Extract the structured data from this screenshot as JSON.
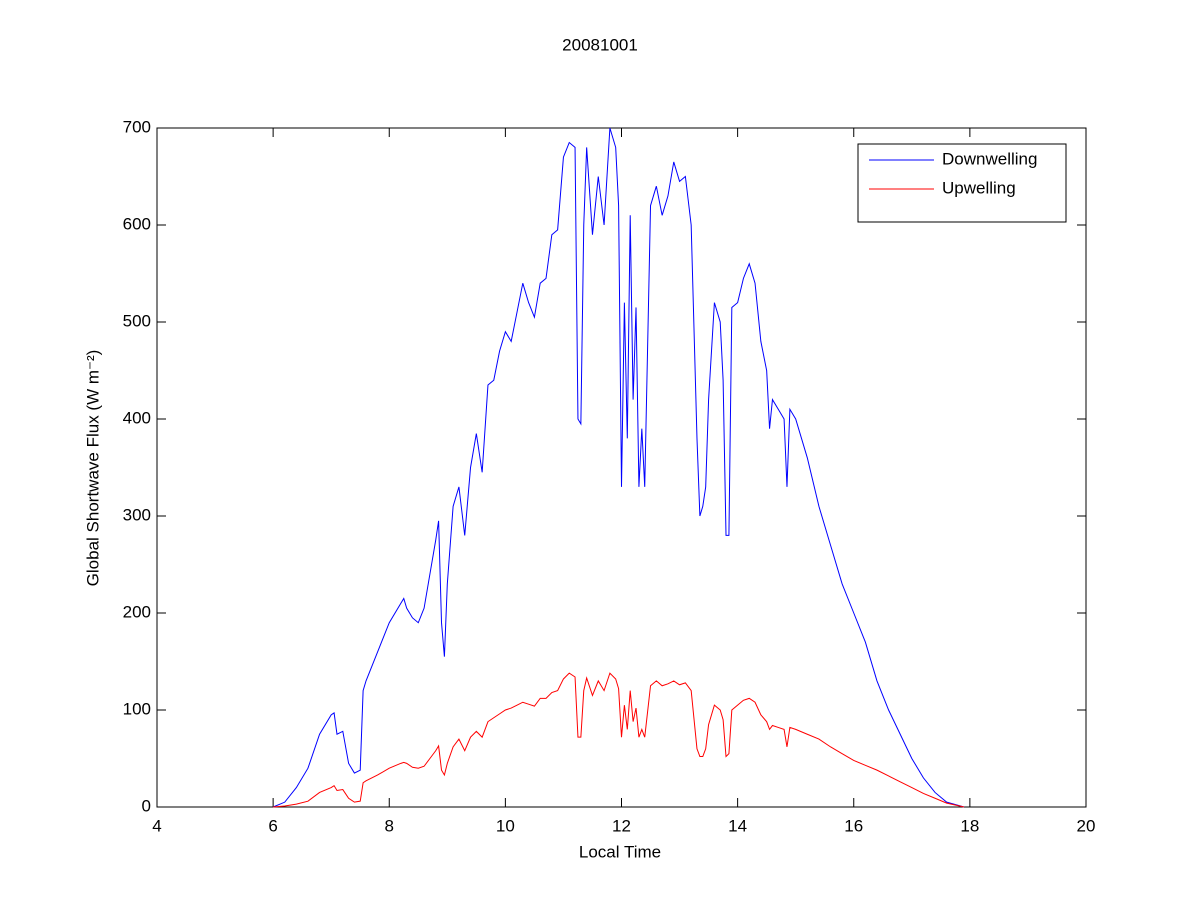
{
  "chart_data": {
    "type": "line",
    "title": "20081001",
    "xlabel": "Local Time",
    "ylabel": "Global Shortwave Flux (W m⁻²)",
    "xlim": [
      4,
      20
    ],
    "ylim": [
      0,
      700
    ],
    "xticks": [
      4,
      6,
      8,
      10,
      12,
      14,
      16,
      18,
      20
    ],
    "yticks": [
      0,
      100,
      200,
      300,
      400,
      500,
      600,
      700
    ],
    "legend": "upper right",
    "grid": false,
    "x": [
      6.0,
      6.2,
      6.4,
      6.6,
      6.8,
      7.0,
      7.05,
      7.1,
      7.2,
      7.3,
      7.4,
      7.5,
      7.55,
      7.6,
      7.8,
      8.0,
      8.2,
      8.25,
      8.3,
      8.4,
      8.5,
      8.6,
      8.7,
      8.8,
      8.85,
      8.9,
      8.95,
      9.0,
      9.1,
      9.2,
      9.3,
      9.4,
      9.5,
      9.6,
      9.7,
      9.8,
      9.9,
      10.0,
      10.1,
      10.2,
      10.3,
      10.4,
      10.5,
      10.6,
      10.7,
      10.8,
      10.9,
      11.0,
      11.1,
      11.2,
      11.25,
      11.3,
      11.35,
      11.4,
      11.5,
      11.6,
      11.7,
      11.8,
      11.9,
      11.95,
      12.0,
      12.05,
      12.1,
      12.15,
      12.2,
      12.25,
      12.3,
      12.35,
      12.4,
      12.5,
      12.6,
      12.7,
      12.8,
      12.9,
      13.0,
      13.1,
      13.2,
      13.3,
      13.35,
      13.4,
      13.45,
      13.5,
      13.6,
      13.7,
      13.75,
      13.8,
      13.85,
      13.9,
      14.0,
      14.1,
      14.2,
      14.3,
      14.4,
      14.5,
      14.55,
      14.6,
      14.7,
      14.8,
      14.85,
      14.9,
      15.0,
      15.2,
      15.4,
      15.6,
      15.8,
      16.0,
      16.2,
      16.4,
      16.6,
      16.8,
      17.0,
      17.2,
      17.4,
      17.6,
      17.9
    ],
    "series": [
      {
        "name": "Downwelling",
        "color": "#0000ff",
        "values": [
          0,
          5,
          20,
          40,
          75,
          95,
          97,
          75,
          78,
          45,
          35,
          38,
          120,
          130,
          160,
          190,
          210,
          215,
          205,
          195,
          190,
          205,
          240,
          275,
          295,
          190,
          155,
          230,
          310,
          330,
          280,
          350,
          385,
          345,
          435,
          440,
          470,
          490,
          480,
          510,
          540,
          520,
          505,
          540,
          545,
          590,
          595,
          670,
          685,
          680,
          400,
          395,
          600,
          680,
          590,
          650,
          600,
          700,
          680,
          620,
          330,
          520,
          380,
          610,
          420,
          515,
          330,
          390,
          330,
          620,
          640,
          610,
          630,
          665,
          645,
          650,
          600,
          380,
          300,
          310,
          330,
          420,
          520,
          500,
          440,
          280,
          280,
          515,
          520,
          545,
          560,
          540,
          480,
          450,
          390,
          420,
          410,
          400,
          330,
          410,
          400,
          360,
          310,
          270,
          230,
          200,
          170,
          130,
          100,
          75,
          50,
          30,
          15,
          5,
          0
        ]
      },
      {
        "name": "Upwelling",
        "color": "#ff0000",
        "values": [
          0,
          1,
          3,
          6,
          15,
          20,
          22,
          17,
          18,
          9,
          5,
          6,
          25,
          27,
          33,
          40,
          45,
          46,
          45,
          41,
          40,
          42,
          50,
          58,
          63,
          38,
          33,
          45,
          62,
          70,
          58,
          72,
          78,
          72,
          88,
          92,
          96,
          100,
          102,
          105,
          108,
          106,
          104,
          112,
          112,
          118,
          120,
          132,
          138,
          134,
          72,
          72,
          120,
          133,
          115,
          130,
          120,
          138,
          132,
          122,
          72,
          105,
          80,
          120,
          88,
          102,
          72,
          80,
          72,
          125,
          130,
          125,
          127,
          130,
          126,
          128,
          120,
          60,
          52,
          52,
          60,
          85,
          105,
          100,
          90,
          52,
          55,
          100,
          105,
          110,
          112,
          108,
          95,
          88,
          80,
          84,
          82,
          80,
          62,
          82,
          80,
          75,
          70,
          62,
          55,
          48,
          43,
          38,
          32,
          26,
          20,
          14,
          9,
          4,
          0
        ]
      }
    ]
  }
}
